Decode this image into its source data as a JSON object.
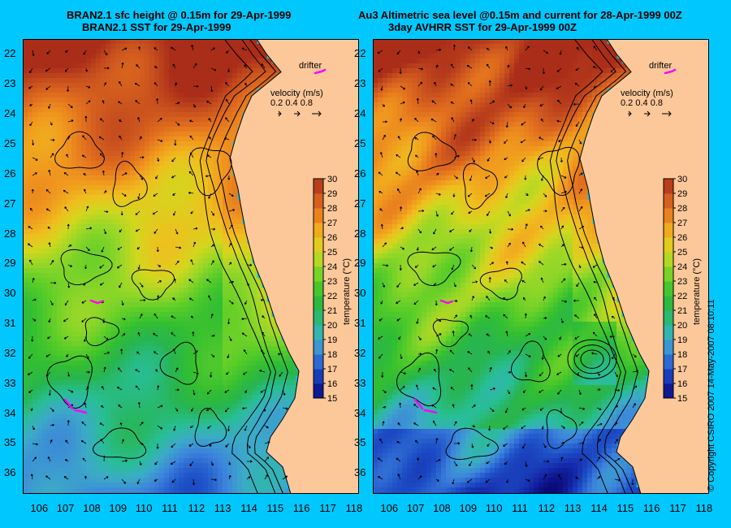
{
  "titles": {
    "left_line1": "BRAN2.1 sfc height @ 0.15m for 29-Apr-1999",
    "left_line2": "BRAN2.1 SST for 29-Apr-1999",
    "right_line1": "Au3 Altimetric sea level  @0.15m and current for 28-Apr-1999 00Z",
    "right_line2": "3day AVHRR SST for 29-Apr-1999 00Z"
  },
  "axes": {
    "lat_labels": [
      "22",
      "23",
      "24",
      "25",
      "26",
      "27",
      "28",
      "29",
      "30",
      "31",
      "32",
      "33",
      "34",
      "35",
      "36"
    ],
    "lon_labels": [
      "106",
      "107",
      "108",
      "109",
      "110",
      "111",
      "112",
      "113",
      "114",
      "115",
      "116",
      "117",
      "118"
    ],
    "lat_range": [
      21.5,
      36.7
    ],
    "lon_range": [
      105.4,
      118.2
    ]
  },
  "legend": {
    "drifter_label": "drifter",
    "velocity_label": "velocity (m/s)",
    "velocity_values": "0.2 0.4 0.8",
    "colorbar_label": "temperature (°C)",
    "colorbar_ticks": [
      "30",
      "29",
      "28",
      "27",
      "26",
      "25",
      "24",
      "23",
      "22",
      "21",
      "20",
      "19",
      "18",
      "17",
      "16",
      "15"
    ],
    "colorbar_range": [
      15,
      30
    ]
  },
  "colors": {
    "background": "#00c8ff",
    "land": "#fcc89a",
    "drifter": "#ff00ff"
  },
  "copyright": "© Copyright CSIRO 2007   14-May-2007 08:10:11"
}
